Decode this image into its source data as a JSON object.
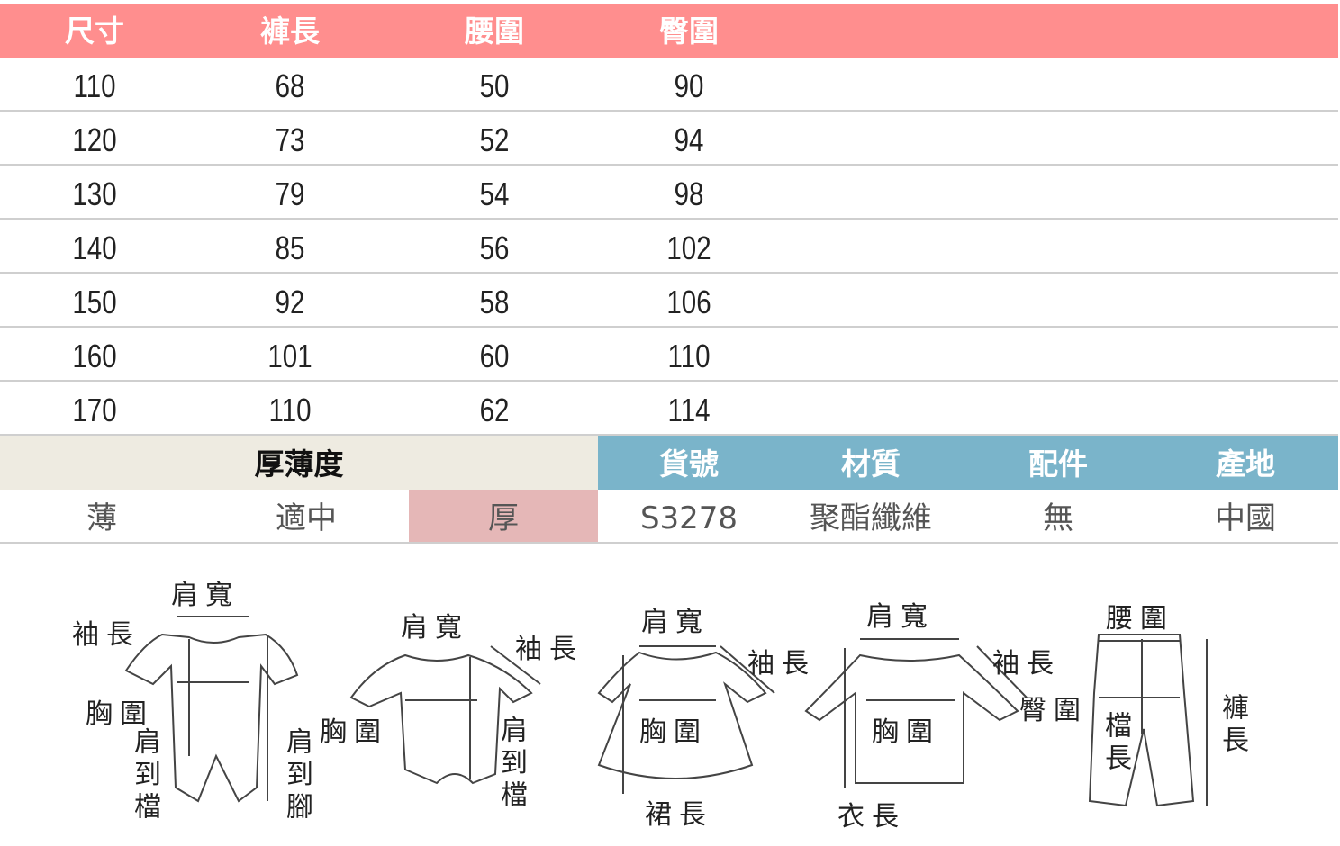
{
  "size_table": {
    "headers": [
      "尺寸",
      "褲長",
      "腰圍",
      "臀圍"
    ],
    "rows": [
      [
        "110",
        "68",
        "50",
        "90"
      ],
      [
        "120",
        "73",
        "52",
        "94"
      ],
      [
        "130",
        "79",
        "54",
        "98"
      ],
      [
        "140",
        "85",
        "56",
        "102"
      ],
      [
        "150",
        "92",
        "58",
        "106"
      ],
      [
        "160",
        "101",
        "60",
        "110"
      ],
      [
        "170",
        "110",
        "62",
        "114"
      ]
    ],
    "header_color": "#ff8e8e"
  },
  "thickness": {
    "title": "厚薄度",
    "options": [
      "薄",
      "適中",
      "厚"
    ],
    "selected": "厚",
    "selected_color": "#e5b7b7",
    "header_color": "#eeebe1"
  },
  "product_info": {
    "headers": [
      "貨號",
      "材質",
      "配件",
      "產地"
    ],
    "values": [
      "S3278",
      "聚酯纖維",
      "無",
      "中國"
    ],
    "header_color": "#7ab4ca"
  },
  "diagram": {
    "romper": {
      "shoulder": "肩寬",
      "sleeve": "袖長",
      "chest": "胸圍",
      "shoulder_crotch": "肩到檔",
      "shoulder_foot": "肩到腳"
    },
    "bodysuit": {
      "shoulder": "肩寬",
      "sleeve": "袖長",
      "chest": "胸圍",
      "shoulder_crotch": "肩到檔"
    },
    "dress": {
      "shoulder": "肩寬",
      "sleeve": "袖長",
      "chest": "胸圍",
      "skirt_length": "裙長"
    },
    "top": {
      "shoulder": "肩寬",
      "sleeve": "袖長",
      "chest": "胸圍",
      "length": "衣長"
    },
    "pants": {
      "waist": "腰圍",
      "hip": "臀圍",
      "crotch": "檔長",
      "length": "褲長"
    }
  }
}
